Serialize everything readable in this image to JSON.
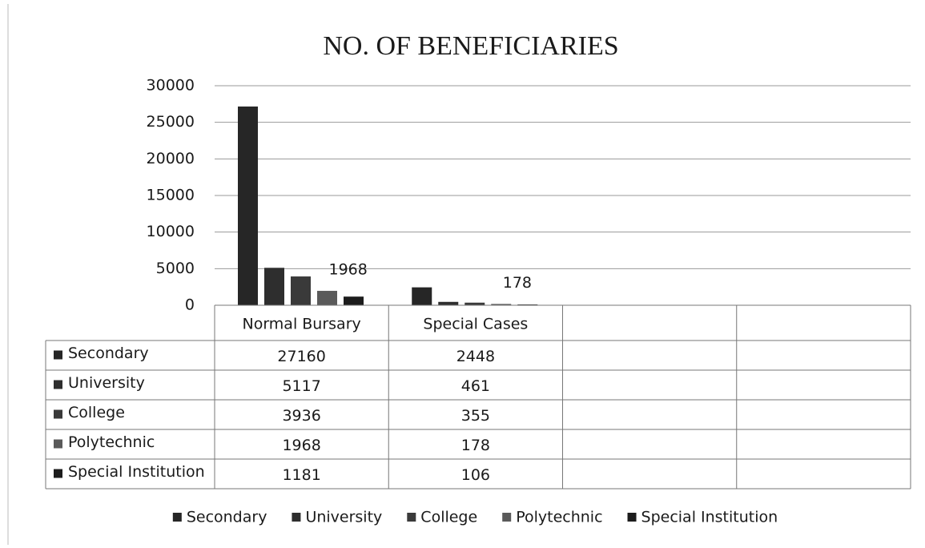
{
  "chart_data": {
    "type": "bar",
    "title": "NO. OF BENEFICIARIES",
    "categories": [
      "Normal Bursary",
      "Special Cases",
      null,
      null
    ],
    "series": [
      {
        "name": "Secondary",
        "color": "#262626",
        "values": [
          27160,
          2448,
          null,
          null
        ]
      },
      {
        "name": "University",
        "color": "#2e2e2e",
        "values": [
          5117,
          461,
          null,
          null
        ]
      },
      {
        "name": "College",
        "color": "#3a3a3a",
        "values": [
          3936,
          355,
          null,
          null
        ]
      },
      {
        "name": "Polytechnic",
        "color": "#5a5a5a",
        "values": [
          1968,
          178,
          null,
          null
        ]
      },
      {
        "name": "Special Institution",
        "color": "#1c1c1c",
        "values": [
          1181,
          106,
          null,
          null
        ]
      }
    ],
    "data_labels": [
      [
        3,
        0
      ],
      [
        3,
        1
      ]
    ],
    "ylim": [
      0,
      30000
    ],
    "yticks": [
      0,
      5000,
      10000,
      15000,
      20000,
      25000,
      30000
    ],
    "grid": true,
    "legend": "bottom",
    "data_table": true
  }
}
